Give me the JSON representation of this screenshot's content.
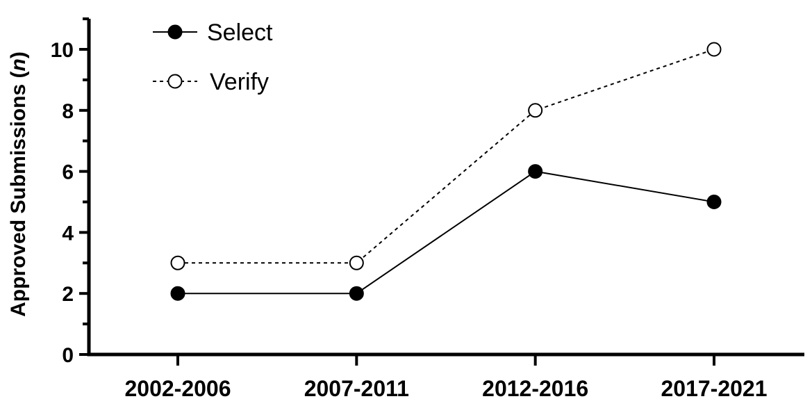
{
  "chart_data": {
    "type": "line",
    "categories": [
      "2002-2006",
      "2007-2011",
      "2012-2016",
      "2017-2021"
    ],
    "series": [
      {
        "name": "Select",
        "values": [
          2,
          2,
          6,
          5
        ],
        "marker": "filled-circle",
        "line": "solid",
        "color": "#000000"
      },
      {
        "name": "Verify",
        "values": [
          3,
          3,
          8,
          10
        ],
        "marker": "open-circle",
        "line": "dashed",
        "color": "#000000"
      }
    ],
    "ylabel": "Approved Submissions (n)",
    "ylabel_parts": {
      "text": "Approved Submissions (",
      "italic": "n",
      "close": ")"
    },
    "ylim": [
      0,
      11
    ],
    "yticks": [
      0,
      2,
      4,
      6,
      8,
      10
    ],
    "legend_position": "top-left",
    "grid": false
  }
}
